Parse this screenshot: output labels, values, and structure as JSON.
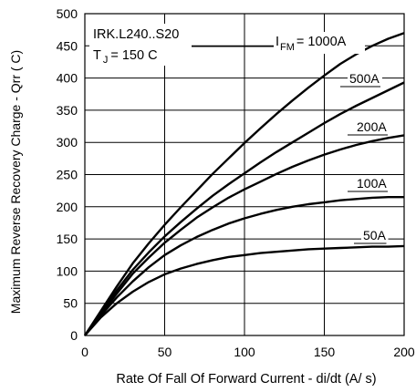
{
  "chart_data": {
    "type": "line",
    "xlabel": "Rate Of Fall Of Forward Current - di/dt (A/  s)",
    "ylabel": "Maximum Reverse Recovery Charge - Qrr (  C)",
    "xlim": [
      0,
      200
    ],
    "ylim": [
      0,
      500
    ],
    "xticks": [
      0,
      50,
      100,
      150,
      200
    ],
    "yticks": [
      0,
      50,
      100,
      150,
      200,
      250,
      300,
      350,
      400,
      450,
      500
    ],
    "grid": true,
    "x": [
      0,
      10,
      20,
      30,
      40,
      50,
      60,
      70,
      80,
      90,
      100,
      110,
      120,
      130,
      140,
      150,
      160,
      170,
      180,
      190,
      200
    ],
    "annotations": {
      "device": "IRK.L240..S20",
      "temp_prefix": "T",
      "temp_sub": "J",
      "temp_value": "= 150  C",
      "ifm_prefix": "I",
      "ifm_sub": "FM",
      "ifm_value": "= 1000A"
    },
    "series": [
      {
        "name": "1000A",
        "values": [
          0,
          38,
          76,
          112,
          143,
          172,
          199,
          225,
          251,
          275,
          299,
          322,
          344,
          365,
          385,
          404,
          422,
          437,
          450,
          461,
          470
        ]
      },
      {
        "name": "500A",
        "values": [
          0,
          35,
          70,
          102,
          129,
          154,
          176,
          197,
          217,
          235,
          252,
          269,
          285,
          300,
          315,
          330,
          344,
          357,
          369,
          381,
          393
        ]
      },
      {
        "name": "200A",
        "values": [
          0,
          33,
          65,
          96,
          121,
          144,
          164,
          183,
          199,
          214,
          227,
          239,
          251,
          262,
          272,
          281,
          289,
          296,
          302,
          307,
          311
        ]
      },
      {
        "name": "100A",
        "values": [
          0,
          31,
          59,
          84,
          106,
          125,
          140,
          153,
          164,
          174,
          182,
          189,
          195,
          200,
          204,
          207,
          210,
          212,
          214,
          215,
          215
        ]
      },
      {
        "name": "50A",
        "values": [
          0,
          28,
          50,
          68,
          83,
          95,
          104,
          111,
          117,
          122,
          125,
          128,
          130,
          132,
          134,
          135,
          136,
          137,
          138,
          138,
          139
        ]
      }
    ]
  }
}
